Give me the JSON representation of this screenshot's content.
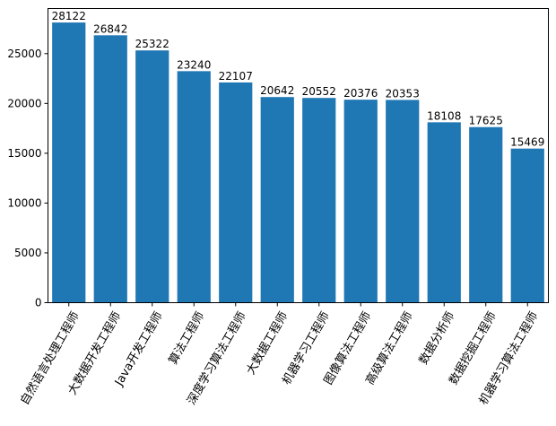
{
  "chart_data": {
    "type": "bar",
    "categories": [
      "自然语言处理工程师",
      "大数据开发工程师",
      "Java开发工程师",
      "算法工程师",
      "深度学习算法工程师",
      "大数据工程师",
      "机器学习工程师",
      "图像算法工程师",
      "高级算法工程师",
      "数据分析师",
      "数据挖掘工程师",
      "机器学习算法工程师"
    ],
    "values": [
      28122,
      26842,
      25322,
      23240,
      22107,
      20642,
      20552,
      20376,
      20353,
      18108,
      17625,
      15469
    ],
    "data_labels": [
      "28122",
      "26842",
      "25322",
      "23240",
      "22107",
      "20642",
      "20552",
      "20376",
      "20353",
      "18108",
      "17625",
      "15469"
    ],
    "y_ticks": [
      0,
      5000,
      10000,
      15000,
      20000,
      25000
    ],
    "y_tick_labels": [
      "0",
      "5000",
      "10000",
      "15000",
      "20000",
      "25000"
    ],
    "ylim": [
      0,
      29528
    ],
    "title": "",
    "xlabel": "",
    "ylabel": "",
    "bar_color": "#1f77b4",
    "grid": false,
    "legend": false
  }
}
